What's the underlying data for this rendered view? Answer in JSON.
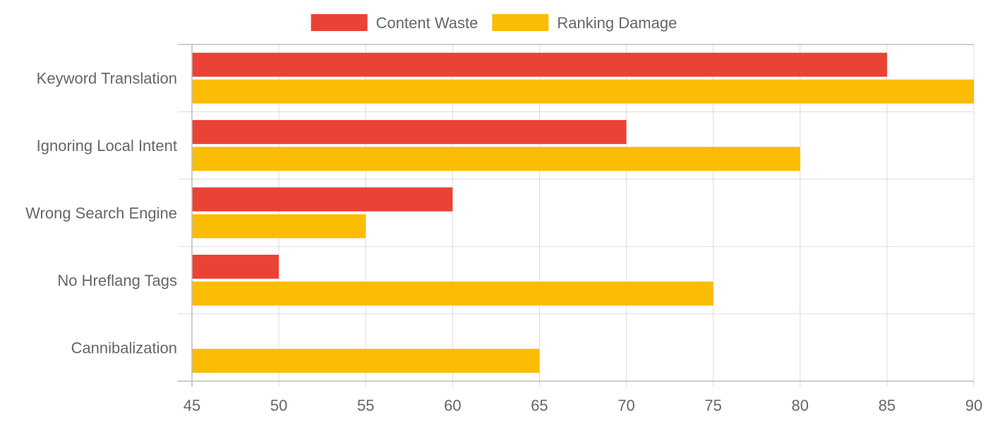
{
  "chart_data": {
    "type": "bar",
    "orientation": "horizontal",
    "categories": [
      "Keyword Translation",
      "Ignoring Local Intent",
      "Wrong Search Engine",
      "No Hreflang Tags",
      "Cannibalization"
    ],
    "series": [
      {
        "name": "Content Waste",
        "color": "#ea4335",
        "values": [
          85,
          70,
          60,
          50,
          45
        ]
      },
      {
        "name": "Ranking Damage",
        "color": "#fbbc04",
        "values": [
          90,
          80,
          55,
          75,
          65
        ]
      }
    ],
    "xlim": [
      45,
      90
    ],
    "xticks": [
      45,
      50,
      55,
      60,
      65,
      70,
      75,
      80,
      85,
      90
    ],
    "title": "",
    "xlabel": "",
    "ylabel": "",
    "grid": true,
    "legend": "top-center"
  }
}
